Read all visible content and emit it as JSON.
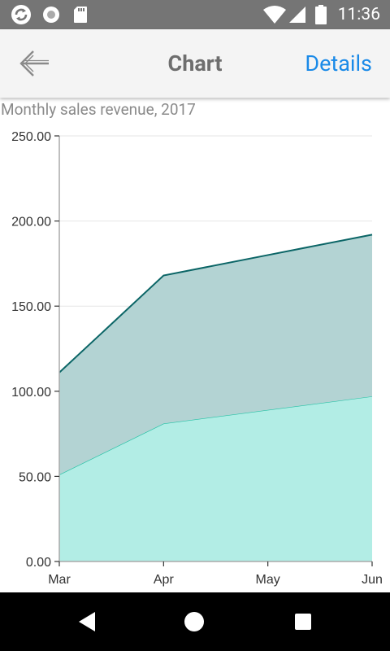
{
  "status_bar": {
    "time": "11:36",
    "icons": [
      "sync-icon",
      "record-icon",
      "sd-card-icon",
      "wifi-icon",
      "cell-signal-icon",
      "battery-icon"
    ]
  },
  "header": {
    "back_icon": "arrow-left-icon",
    "title": "Chart",
    "details_label": "Details"
  },
  "chart_data": {
    "type": "area",
    "title": "Monthly sales revenue, 2017",
    "categories": [
      "Mar",
      "Apr",
      "May",
      "Jun"
    ],
    "ylim": [
      0,
      250
    ],
    "ytick_step": 50,
    "ytick_labels": [
      "0.00",
      "50.00",
      "100.00",
      "150.00",
      "200.00",
      "250.00"
    ],
    "stacked": true,
    "grid": true,
    "series": [
      {
        "values": [
          51,
          81,
          89,
          97
        ],
        "fill": "#b2ede5",
        "stroke": "#26c2a6"
      },
      {
        "values": [
          60,
          87,
          91,
          95
        ],
        "fill": "#b3d3d3",
        "stroke": "#0b6566"
      }
    ],
    "axis_color": "#aaaaaa",
    "grid_color": "#e6e6e6",
    "label_color": "#333333"
  },
  "nav_bar": {
    "back_icon": "triangle-back-icon",
    "home_icon": "circle-home-icon",
    "recents_icon": "square-recents-icon"
  }
}
